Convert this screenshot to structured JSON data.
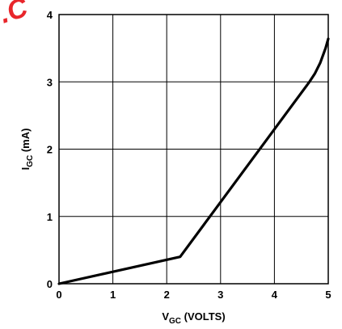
{
  "watermark": {
    "text": ".C",
    "color": "#e8262b"
  },
  "chart_data": {
    "type": "line",
    "title": "",
    "xlabel": {
      "main": "V",
      "subscript": "GC",
      "suffix": " (VOLTS)"
    },
    "ylabel": {
      "main": "I",
      "subscript": "GC",
      "suffix": " (mA)"
    },
    "xlim": [
      0,
      5
    ],
    "ylim": [
      0,
      4
    ],
    "xticks": [
      "0",
      "1",
      "2",
      "3",
      "4",
      "5"
    ],
    "yticks": [
      "0",
      "1",
      "2",
      "3",
      "4"
    ],
    "grid": true,
    "series": [
      {
        "color": "#000000",
        "x": [
          0,
          2.25,
          4.65,
          4.75,
          4.85,
          4.95,
          5.0
        ],
        "y": [
          0.0,
          0.4,
          3.0,
          3.12,
          3.28,
          3.5,
          3.64
        ]
      }
    ]
  }
}
